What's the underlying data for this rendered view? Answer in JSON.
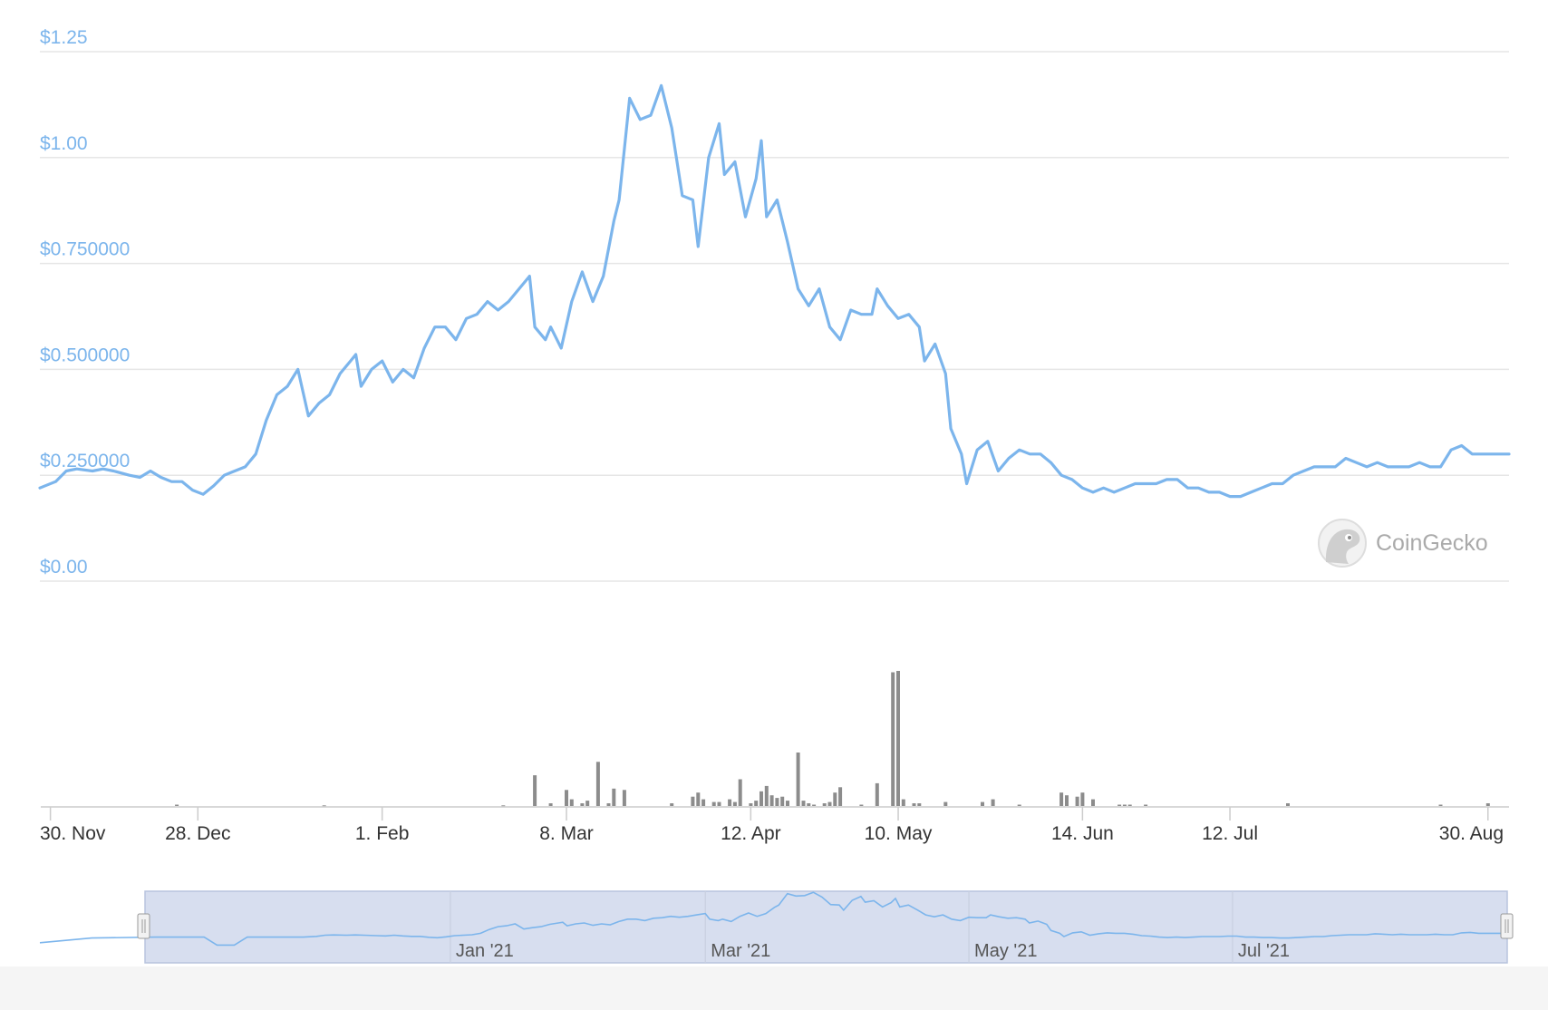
{
  "watermark": {
    "text": "CoinGecko",
    "icon": "gecko-logo-icon"
  },
  "colors": {
    "price_line": "#7cb5ec",
    "volume_bar": "#8c8c8c",
    "navigator_fill": "#d7deef",
    "grid": "#e6e6e6"
  },
  "chart_data": {
    "type": "line",
    "title": "",
    "xlabel": "",
    "ylabel": "",
    "ylim": [
      0,
      1.25
    ],
    "y_ticks": [
      {
        "value": 0,
        "label": "$0.00"
      },
      {
        "value": 0.25,
        "label": "$0.250000"
      },
      {
        "value": 0.5,
        "label": "$0.500000"
      },
      {
        "value": 0.75,
        "label": "$0.750000"
      },
      {
        "value": 1.0,
        "label": "$1.00"
      },
      {
        "value": 1.25,
        "label": "$1.25"
      }
    ],
    "x_ticks": [
      {
        "date": "2020-11-30",
        "label": "30. Nov"
      },
      {
        "date": "2020-12-28",
        "label": "28. Dec"
      },
      {
        "date": "2021-02-01",
        "label": "1. Feb"
      },
      {
        "date": "2021-03-08",
        "label": "8. Mar"
      },
      {
        "date": "2021-04-12",
        "label": "12. Apr"
      },
      {
        "date": "2021-05-10",
        "label": "10. May"
      },
      {
        "date": "2021-06-14",
        "label": "14. Jun"
      },
      {
        "date": "2021-07-12",
        "label": "12. Jul"
      },
      {
        "date": "2021-08-30",
        "label": "30. Aug"
      }
    ],
    "xlim": [
      "2020-11-28",
      "2021-09-03"
    ],
    "grid": true,
    "series": [
      {
        "type": "line",
        "points": [
          [
            "2020-11-28",
            0.22
          ],
          [
            "2020-12-01",
            0.235
          ],
          [
            "2020-12-03",
            0.26
          ],
          [
            "2020-12-05",
            0.265
          ],
          [
            "2020-12-08",
            0.26
          ],
          [
            "2020-12-10",
            0.265
          ],
          [
            "2020-12-12",
            0.26
          ],
          [
            "2020-12-15",
            0.25
          ],
          [
            "2020-12-17",
            0.245
          ],
          [
            "2020-12-19",
            0.26
          ],
          [
            "2020-12-21",
            0.245
          ],
          [
            "2020-12-23",
            0.235
          ],
          [
            "2020-12-25",
            0.235
          ],
          [
            "2020-12-27",
            0.215
          ],
          [
            "2020-12-29",
            0.205
          ],
          [
            "2020-12-31",
            0.225
          ],
          [
            "2021-01-02",
            0.25
          ],
          [
            "2021-01-04",
            0.26
          ],
          [
            "2021-01-06",
            0.27
          ],
          [
            "2021-01-08",
            0.3
          ],
          [
            "2021-01-10",
            0.38
          ],
          [
            "2021-01-12",
            0.44
          ],
          [
            "2021-01-14",
            0.46
          ],
          [
            "2021-01-16",
            0.5
          ],
          [
            "2021-01-18",
            0.39
          ],
          [
            "2021-01-20",
            0.42
          ],
          [
            "2021-01-22",
            0.44
          ],
          [
            "2021-01-24",
            0.49
          ],
          [
            "2021-01-26",
            0.52
          ],
          [
            "2021-01-27",
            0.535
          ],
          [
            "2021-01-28",
            0.46
          ],
          [
            "2021-01-30",
            0.5
          ],
          [
            "2021-02-01",
            0.52
          ],
          [
            "2021-02-03",
            0.47
          ],
          [
            "2021-02-05",
            0.5
          ],
          [
            "2021-02-07",
            0.48
          ],
          [
            "2021-02-09",
            0.55
          ],
          [
            "2021-02-11",
            0.6
          ],
          [
            "2021-02-13",
            0.6
          ],
          [
            "2021-02-15",
            0.57
          ],
          [
            "2021-02-17",
            0.62
          ],
          [
            "2021-02-19",
            0.63
          ],
          [
            "2021-02-21",
            0.66
          ],
          [
            "2021-02-23",
            0.64
          ],
          [
            "2021-02-25",
            0.66
          ],
          [
            "2021-02-27",
            0.69
          ],
          [
            "2021-03-01",
            0.72
          ],
          [
            "2021-03-02",
            0.6
          ],
          [
            "2021-03-04",
            0.57
          ],
          [
            "2021-03-05",
            0.6
          ],
          [
            "2021-03-07",
            0.55
          ],
          [
            "2021-03-09",
            0.66
          ],
          [
            "2021-03-11",
            0.73
          ],
          [
            "2021-03-13",
            0.66
          ],
          [
            "2021-03-15",
            0.72
          ],
          [
            "2021-03-17",
            0.85
          ],
          [
            "2021-03-18",
            0.9
          ],
          [
            "2021-03-20",
            1.14
          ],
          [
            "2021-03-22",
            1.09
          ],
          [
            "2021-03-24",
            1.1
          ],
          [
            "2021-03-26",
            1.17
          ],
          [
            "2021-03-28",
            1.07
          ],
          [
            "2021-03-30",
            0.91
          ],
          [
            "2021-04-01",
            0.9
          ],
          [
            "2021-04-02",
            0.79
          ],
          [
            "2021-04-04",
            1.0
          ],
          [
            "2021-04-06",
            1.08
          ],
          [
            "2021-04-07",
            0.96
          ],
          [
            "2021-04-09",
            0.99
          ],
          [
            "2021-04-11",
            0.86
          ],
          [
            "2021-04-13",
            0.95
          ],
          [
            "2021-04-14",
            1.04
          ],
          [
            "2021-04-15",
            0.86
          ],
          [
            "2021-04-17",
            0.9
          ],
          [
            "2021-04-19",
            0.8
          ],
          [
            "2021-04-21",
            0.69
          ],
          [
            "2021-04-23",
            0.65
          ],
          [
            "2021-04-25",
            0.69
          ],
          [
            "2021-04-27",
            0.6
          ],
          [
            "2021-04-29",
            0.57
          ],
          [
            "2021-05-01",
            0.64
          ],
          [
            "2021-05-03",
            0.63
          ],
          [
            "2021-05-05",
            0.63
          ],
          [
            "2021-05-06",
            0.69
          ],
          [
            "2021-05-08",
            0.65
          ],
          [
            "2021-05-10",
            0.62
          ],
          [
            "2021-05-12",
            0.63
          ],
          [
            "2021-05-14",
            0.6
          ],
          [
            "2021-05-15",
            0.52
          ],
          [
            "2021-05-17",
            0.56
          ],
          [
            "2021-05-19",
            0.49
          ],
          [
            "2021-05-20",
            0.36
          ],
          [
            "2021-05-22",
            0.3
          ],
          [
            "2021-05-23",
            0.23
          ],
          [
            "2021-05-25",
            0.31
          ],
          [
            "2021-05-27",
            0.33
          ],
          [
            "2021-05-29",
            0.26
          ],
          [
            "2021-05-31",
            0.29
          ],
          [
            "2021-06-02",
            0.31
          ],
          [
            "2021-06-04",
            0.3
          ],
          [
            "2021-06-06",
            0.3
          ],
          [
            "2021-06-08",
            0.28
          ],
          [
            "2021-06-10",
            0.25
          ],
          [
            "2021-06-12",
            0.24
          ],
          [
            "2021-06-14",
            0.22
          ],
          [
            "2021-06-16",
            0.21
          ],
          [
            "2021-06-18",
            0.22
          ],
          [
            "2021-06-20",
            0.21
          ],
          [
            "2021-06-22",
            0.22
          ],
          [
            "2021-06-24",
            0.23
          ],
          [
            "2021-06-26",
            0.23
          ],
          [
            "2021-06-28",
            0.23
          ],
          [
            "2021-06-30",
            0.24
          ],
          [
            "2021-07-02",
            0.24
          ],
          [
            "2021-07-04",
            0.22
          ],
          [
            "2021-07-06",
            0.22
          ],
          [
            "2021-07-08",
            0.21
          ],
          [
            "2021-07-10",
            0.21
          ],
          [
            "2021-07-12",
            0.2
          ],
          [
            "2021-07-14",
            0.2
          ],
          [
            "2021-07-16",
            0.21
          ],
          [
            "2021-07-18",
            0.22
          ],
          [
            "2021-07-20",
            0.23
          ],
          [
            "2021-07-22",
            0.23
          ],
          [
            "2021-07-24",
            0.25
          ],
          [
            "2021-07-26",
            0.26
          ],
          [
            "2021-07-28",
            0.27
          ],
          [
            "2021-07-30",
            0.27
          ],
          [
            "2021-08-01",
            0.27
          ],
          [
            "2021-08-03",
            0.29
          ],
          [
            "2021-08-05",
            0.28
          ],
          [
            "2021-08-07",
            0.27
          ],
          [
            "2021-08-09",
            0.28
          ],
          [
            "2021-08-11",
            0.27
          ],
          [
            "2021-08-13",
            0.27
          ],
          [
            "2021-08-15",
            0.27
          ],
          [
            "2021-08-17",
            0.28
          ],
          [
            "2021-08-19",
            0.27
          ],
          [
            "2021-08-21",
            0.27
          ],
          [
            "2021-08-23",
            0.31
          ],
          [
            "2021-08-25",
            0.32
          ],
          [
            "2021-08-27",
            0.3
          ],
          [
            "2021-08-29",
            0.3
          ],
          [
            "2021-09-03",
            0.3
          ]
        ]
      },
      {
        "type": "bar",
        "points": [
          [
            "2020-12-24",
            0.01
          ],
          [
            "2021-01-21",
            0.005
          ],
          [
            "2021-02-24",
            0.005
          ],
          [
            "2021-03-02",
            0.23
          ],
          [
            "2021-03-05",
            0.02
          ],
          [
            "2021-03-08",
            0.12
          ],
          [
            "2021-03-09",
            0.05
          ],
          [
            "2021-03-11",
            0.02
          ],
          [
            "2021-03-12",
            0.04
          ],
          [
            "2021-03-14",
            0.33
          ],
          [
            "2021-03-16",
            0.02
          ],
          [
            "2021-03-17",
            0.13
          ],
          [
            "2021-03-19",
            0.12
          ],
          [
            "2021-03-28",
            0.02
          ],
          [
            "2021-04-01",
            0.07
          ],
          [
            "2021-04-02",
            0.1
          ],
          [
            "2021-04-03",
            0.05
          ],
          [
            "2021-04-05",
            0.03
          ],
          [
            "2021-04-06",
            0.03
          ],
          [
            "2021-04-08",
            0.05
          ],
          [
            "2021-04-09",
            0.03
          ],
          [
            "2021-04-10",
            0.2
          ],
          [
            "2021-04-12",
            0.02
          ],
          [
            "2021-04-13",
            0.04
          ],
          [
            "2021-04-14",
            0.11
          ],
          [
            "2021-04-15",
            0.15
          ],
          [
            "2021-04-16",
            0.08
          ],
          [
            "2021-04-17",
            0.06
          ],
          [
            "2021-04-18",
            0.07
          ],
          [
            "2021-04-19",
            0.04
          ],
          [
            "2021-04-21",
            0.4
          ],
          [
            "2021-04-22",
            0.04
          ],
          [
            "2021-04-23",
            0.02
          ],
          [
            "2021-04-24",
            0.01
          ],
          [
            "2021-04-26",
            0.02
          ],
          [
            "2021-04-27",
            0.03
          ],
          [
            "2021-04-28",
            0.1
          ],
          [
            "2021-04-29",
            0.14
          ],
          [
            "2021-05-03",
            0.01
          ],
          [
            "2021-05-06",
            0.17
          ],
          [
            "2021-05-09",
            1.0
          ],
          [
            "2021-05-10",
            1.01
          ],
          [
            "2021-05-11",
            0.05
          ],
          [
            "2021-05-13",
            0.02
          ],
          [
            "2021-05-14",
            0.02
          ],
          [
            "2021-05-19",
            0.03
          ],
          [
            "2021-05-26",
            0.03
          ],
          [
            "2021-05-28",
            0.05
          ],
          [
            "2021-06-02",
            0.01
          ],
          [
            "2021-06-10",
            0.1
          ],
          [
            "2021-06-11",
            0.08
          ],
          [
            "2021-06-13",
            0.07
          ],
          [
            "2021-06-14",
            0.1
          ],
          [
            "2021-06-16",
            0.05
          ],
          [
            "2021-06-21",
            0.01
          ],
          [
            "2021-06-22",
            0.01
          ],
          [
            "2021-06-23",
            0.01
          ],
          [
            "2021-06-26",
            0.01
          ],
          [
            "2021-07-23",
            0.02
          ],
          [
            "2021-08-21",
            0.01
          ],
          [
            "2021-08-30",
            0.02
          ]
        ]
      }
    ],
    "navigator": {
      "labels": [
        "Jan '21",
        "Mar '21",
        "May '21",
        "Jul '21"
      ],
      "selected_range": [
        "2020-11-28",
        "2021-09-03"
      ]
    }
  }
}
